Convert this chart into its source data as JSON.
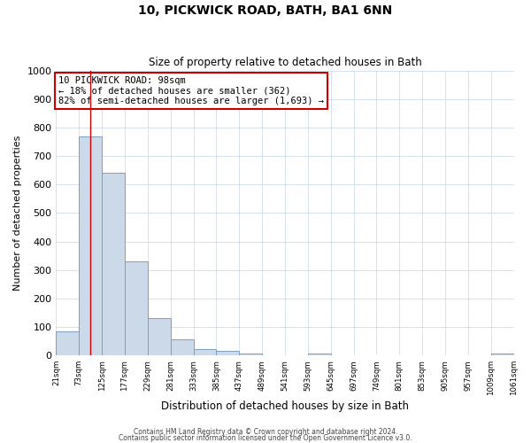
{
  "title": "10, PICKWICK ROAD, BATH, BA1 6NN",
  "subtitle": "Size of property relative to detached houses in Bath",
  "xlabel": "Distribution of detached houses by size in Bath",
  "ylabel": "Number of detached properties",
  "bar_color": "#ccd9e8",
  "bar_edge_color": "#7aa0c4",
  "background_color": "#ffffff",
  "grid_color": "#c8d4e4",
  "property_line_x": 98,
  "property_line_color": "#cc0000",
  "annotation_box_color": "#cc0000",
  "bin_edges": [
    21,
    73,
    125,
    177,
    229,
    281,
    333,
    385,
    437,
    489,
    541,
    593,
    645,
    697,
    749,
    801,
    853,
    905,
    957,
    1009,
    1061
  ],
  "bar_heights": [
    85,
    770,
    640,
    330,
    130,
    58,
    22,
    15,
    8,
    0,
    0,
    8,
    0,
    0,
    0,
    0,
    0,
    0,
    0,
    8
  ],
  "annotation_line1": "10 PICKWICK ROAD: 98sqm",
  "annotation_line2": "← 18% of detached houses are smaller (362)",
  "annotation_line3": "82% of semi-detached houses are larger (1,693) →",
  "ylim": [
    0,
    1000
  ],
  "yticks": [
    0,
    100,
    200,
    300,
    400,
    500,
    600,
    700,
    800,
    900,
    1000
  ],
  "footer_line1": "Contains HM Land Registry data © Crown copyright and database right 2024.",
  "footer_line2": "Contains public sector information licensed under the Open Government Licence v3.0."
}
